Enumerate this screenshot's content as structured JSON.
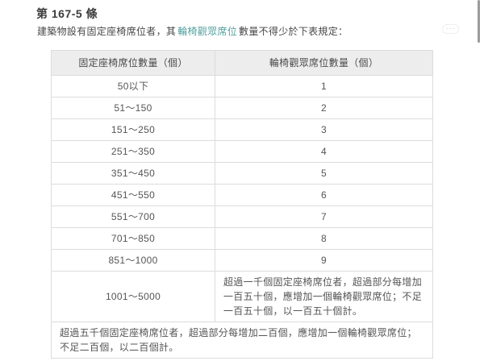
{
  "article": {
    "number": "第 167-5 條",
    "intro": {
      "prefix": "建築物設有固定座椅席位者，其",
      "link": "輪椅觀眾席位",
      "suffix": "數量不得少於下表規定："
    },
    "more_button": "···"
  },
  "table": {
    "headers": [
      "固定座椅席位數量（個）",
      "輪椅觀眾席位數量（個）"
    ],
    "rows": [
      [
        "50以下",
        "1"
      ],
      [
        "51～150",
        "2"
      ],
      [
        "151～250",
        "3"
      ],
      [
        "251～350",
        "4"
      ],
      [
        "351～450",
        "5"
      ],
      [
        "451～550",
        "6"
      ],
      [
        "551～700",
        "7"
      ],
      [
        "701～850",
        "8"
      ],
      [
        "851～1000",
        "9"
      ],
      [
        "1001～5000",
        "超過一千個固定座椅席位者，超過部分每增加一百五十個，應增加一個輪椅觀眾席位；不足一百五十個，以一百五十個計。"
      ]
    ],
    "footnote_row": "超過五千個固定座椅席位者，超過部分每增加二百個，應增加一個輪椅觀眾席位；不足二百個，以二百個計。"
  },
  "colors": {
    "link": "#54a1a0",
    "table_border": "#dcdcdc",
    "header_bg": "#ededed",
    "scrollbar": "#9b9b9b"
  }
}
